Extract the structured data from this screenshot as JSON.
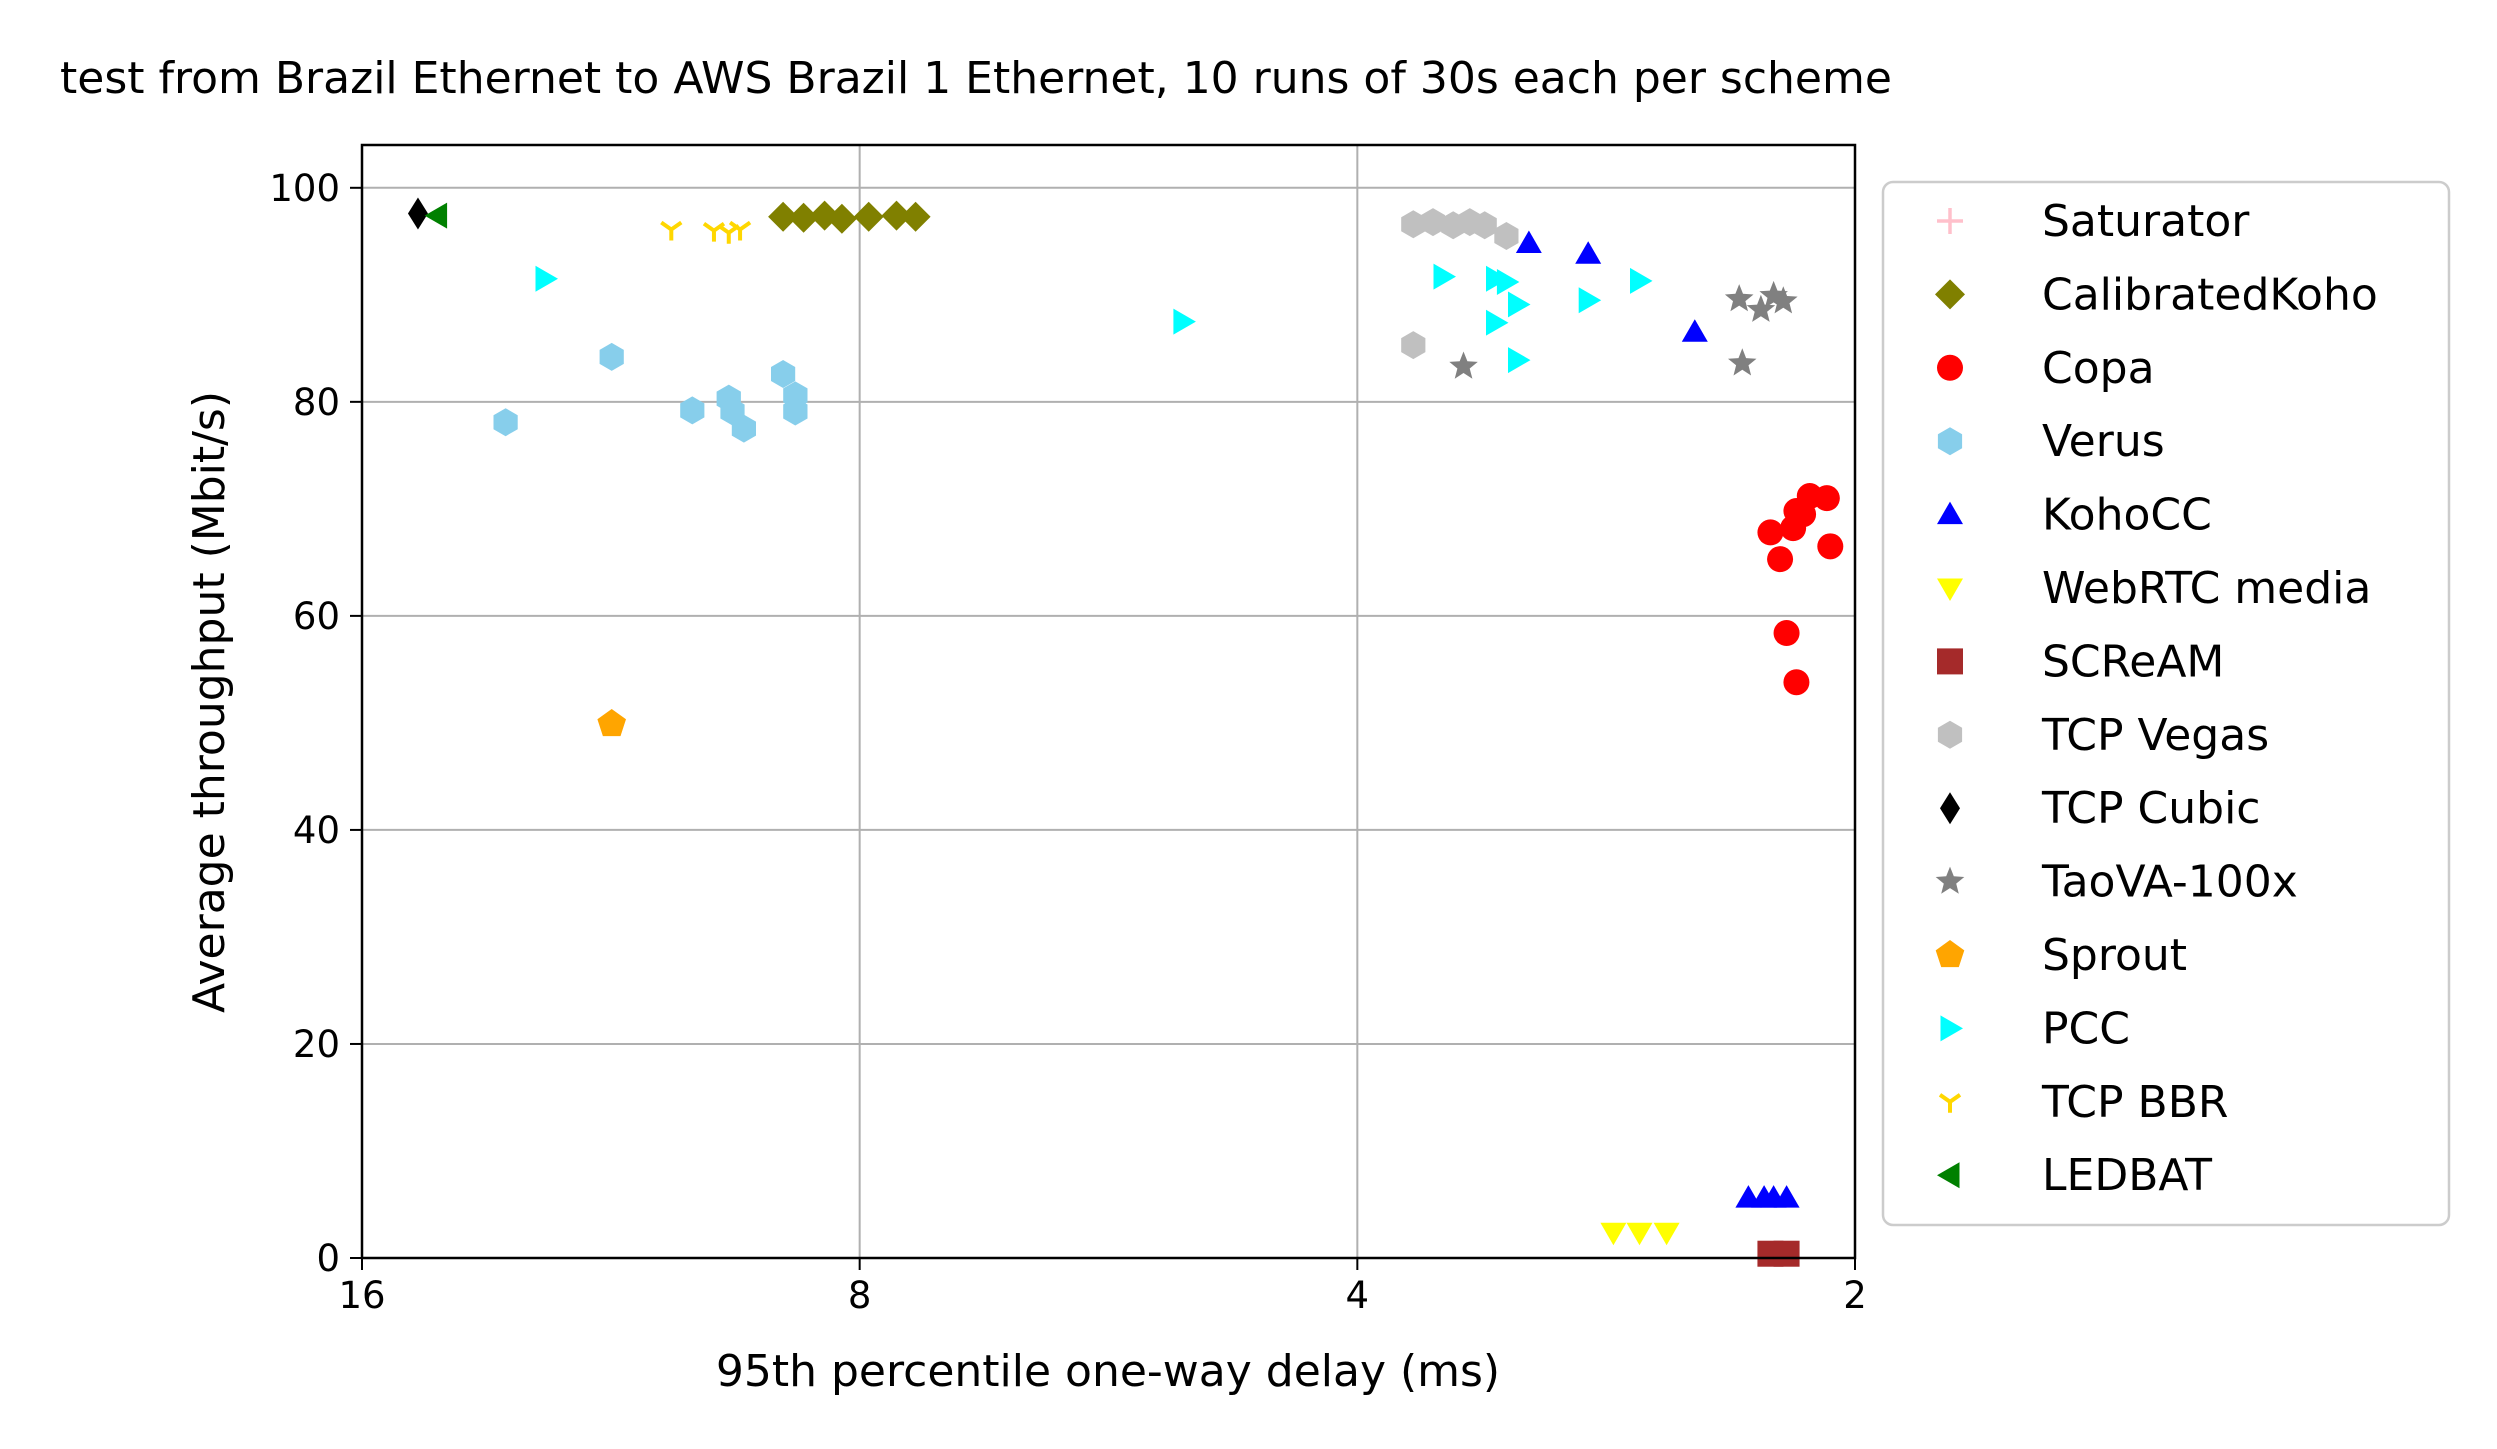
{
  "chart_data": {
    "type": "scatter",
    "title": "test from Brazil Ethernet to AWS Brazil 1 Ethernet, 10 runs of 30s each per scheme",
    "xlabel": "95th percentile one-way delay (ms)",
    "ylabel": "Average throughput (Mbit/s)",
    "x_scale": "log2",
    "x_inverted": true,
    "xlim": [
      16,
      2
    ],
    "ylim": [
      0,
      104
    ],
    "x_ticks": [
      16,
      8,
      4,
      2
    ],
    "y_ticks": [
      0,
      20,
      40,
      60,
      80,
      100
    ],
    "grid": true,
    "legend_position": "outside-right",
    "series": [
      {
        "name": "Saturator",
        "marker": "plus",
        "color": "#ffc0cb",
        "points": []
      },
      {
        "name": "CalibratedKoho",
        "marker": "diamond",
        "color": "#808000",
        "points": [
          [
            8.9,
            97.3
          ],
          [
            8.65,
            97.2
          ],
          [
            8.4,
            97.4
          ],
          [
            8.2,
            97.1
          ],
          [
            7.9,
            97.3
          ],
          [
            7.6,
            97.4
          ],
          [
            7.4,
            97.3
          ]
        ]
      },
      {
        "name": "Copa",
        "marker": "circle",
        "color": "#ff0000",
        "points": [
          [
            2.25,
            67.8
          ],
          [
            2.22,
            65.3
          ],
          [
            2.2,
            58.4
          ],
          [
            2.17,
            53.8
          ],
          [
            2.17,
            69.8
          ],
          [
            2.13,
            71.2
          ],
          [
            2.08,
            71.0
          ],
          [
            2.18,
            68.2
          ],
          [
            2.15,
            69.5
          ],
          [
            2.07,
            66.5
          ]
        ]
      },
      {
        "name": "Verus",
        "marker": "hexagon",
        "color": "#87ceeb",
        "points": [
          [
            13.1,
            78.1
          ],
          [
            11.3,
            84.2
          ],
          [
            10.1,
            79.2
          ],
          [
            9.6,
            80.3
          ],
          [
            9.55,
            79.1
          ],
          [
            9.4,
            77.5
          ],
          [
            8.9,
            82.6
          ],
          [
            8.75,
            80.6
          ],
          [
            8.75,
            79.1
          ]
        ]
      },
      {
        "name": "KohoCC",
        "marker": "triangle-up",
        "color": "#0000ff",
        "points": [
          [
            3.15,
            94.8
          ],
          [
            2.9,
            93.8
          ],
          [
            2.5,
            86.5
          ],
          [
            2.32,
            5.6
          ],
          [
            2.27,
            5.6
          ],
          [
            2.24,
            5.6
          ],
          [
            2.2,
            5.6
          ]
        ]
      },
      {
        "name": "WebRTC media",
        "marker": "triangle-down",
        "color": "#ffff00",
        "points": [
          [
            2.8,
            2.4
          ],
          [
            2.7,
            2.4
          ],
          [
            2.6,
            2.4
          ]
        ]
      },
      {
        "name": "SCReAM",
        "marker": "square",
        "color": "#a52a2a",
        "points": [
          [
            2.25,
            0.4
          ],
          [
            2.2,
            0.4
          ]
        ]
      },
      {
        "name": "TCP Vegas",
        "marker": "hexagon",
        "color": "#c0c0c0",
        "points": [
          [
            3.7,
            96.6
          ],
          [
            3.6,
            96.8
          ],
          [
            3.5,
            96.5
          ],
          [
            3.42,
            96.8
          ],
          [
            3.35,
            96.5
          ],
          [
            3.25,
            95.5
          ],
          [
            3.7,
            85.3
          ]
        ]
      },
      {
        "name": "TCP Cubic",
        "marker": "thin-diamond",
        "color": "#000000",
        "points": [
          [
            14.8,
            97.6
          ]
        ]
      },
      {
        "name": "TaoVA-100x",
        "marker": "star",
        "color": "#808080",
        "points": [
          [
            3.45,
            83.3
          ],
          [
            2.35,
            89.6
          ],
          [
            2.28,
            88.6
          ],
          [
            2.24,
            89.9
          ],
          [
            2.21,
            89.4
          ],
          [
            2.34,
            83.6
          ]
        ]
      },
      {
        "name": "Sprout",
        "marker": "pentagon",
        "color": "#ffa500",
        "points": [
          [
            11.3,
            49.9
          ]
        ]
      },
      {
        "name": "PCC",
        "marker": "triangle-right",
        "color": "#00ffff",
        "points": [
          [
            12.4,
            91.5
          ],
          [
            5.1,
            87.5
          ],
          [
            3.55,
            91.7
          ],
          [
            3.3,
            91.5
          ],
          [
            3.25,
            91.2
          ],
          [
            3.2,
            89.1
          ],
          [
            3.3,
            87.4
          ],
          [
            3.2,
            83.9
          ],
          [
            2.9,
            89.5
          ],
          [
            2.7,
            91.3
          ]
        ]
      },
      {
        "name": "TCP BBR",
        "marker": "tri-down",
        "color": "#ffd700",
        "points": [
          [
            10.4,
            96.1
          ],
          [
            9.8,
            96.0
          ],
          [
            9.6,
            95.8
          ],
          [
            9.45,
            96.1
          ]
        ]
      },
      {
        "name": "LEDBAT",
        "marker": "triangle-left",
        "color": "#008000",
        "points": [
          [
            14.4,
            97.4
          ]
        ]
      }
    ]
  }
}
